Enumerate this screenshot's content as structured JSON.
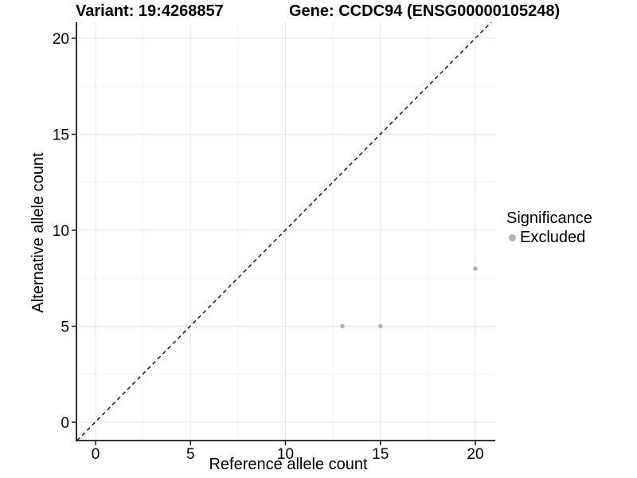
{
  "titles": {
    "variant": "Variant: 19:4268857",
    "gene": "Gene: CCDC94 (ENSG00000105248)"
  },
  "legend": {
    "title": "Significance",
    "items": [
      {
        "label": "Excluded",
        "color": "#b3b3b3"
      }
    ]
  },
  "chart_data": {
    "type": "scatter",
    "title": "Variant: 19:4268857    Gene: CCDC94 (ENSG00000105248)",
    "xlabel": "Reference allele count",
    "ylabel": "Alternative allele count",
    "xlim": [
      -1,
      21
    ],
    "ylim": [
      -1,
      21
    ],
    "x_ticks": [
      0,
      5,
      10,
      15,
      20
    ],
    "y_ticks": [
      0,
      5,
      10,
      15,
      20
    ],
    "x_minor_ticks": [
      2.5,
      7.5,
      12.5,
      17.5
    ],
    "y_minor_ticks": [
      2.5,
      7.5,
      12.5,
      17.5
    ],
    "grid": true,
    "legend_title": "Significance",
    "legend_position": "right",
    "series": [
      {
        "name": "Excluded",
        "color": "#b3b3b3",
        "points": [
          [
            13,
            5
          ],
          [
            15,
            5
          ],
          [
            20,
            8
          ]
        ]
      }
    ],
    "reference_line": {
      "equation": "y = x",
      "style": "dashed",
      "color": "#1a1a1a"
    }
  },
  "colors": {
    "background": "#ffffff",
    "axis": "#1a1a1a",
    "grid_major": "#e7e7e7",
    "grid_minor": "#f2f2f2",
    "point": "#b3b3b3",
    "text": "#000000"
  }
}
